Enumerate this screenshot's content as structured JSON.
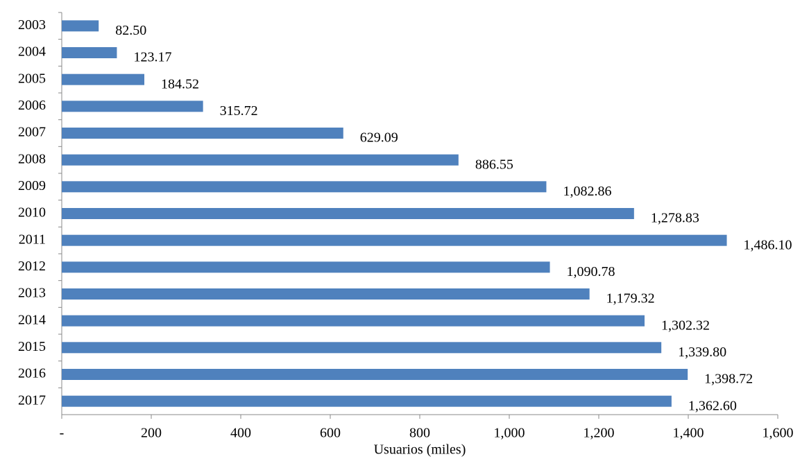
{
  "chart_data": {
    "type": "hbar",
    "x_label": "Usuarios (miles)",
    "categories": [
      "2003",
      "2004",
      "2005",
      "2006",
      "2007",
      "2008",
      "2009",
      "2010",
      "2011",
      "2012",
      "2013",
      "2014",
      "2015",
      "2016",
      "2017"
    ],
    "values": [
      82.5,
      123.17,
      184.52,
      315.72,
      629.09,
      886.55,
      1082.86,
      1278.83,
      1486.1,
      1090.78,
      1179.32,
      1302.32,
      1339.8,
      1398.72,
      1362.6
    ],
    "value_labels": [
      "82.50",
      "123.17",
      "184.52",
      "315.72",
      "629.09",
      "886.55",
      "1,082.86",
      "1,278.83",
      "1,486.10",
      "1,090.78",
      "1,179.32",
      "1,302.32",
      "1,339.80",
      "1,398.72",
      "1,362.60"
    ],
    "color": "#4f81bd",
    "xlim": [
      0,
      1600
    ],
    "xticks": [
      {
        "value": 0,
        "label": "-"
      },
      200,
      400,
      600,
      800,
      {
        "value": 1000,
        "label": "1,000"
      },
      {
        "value": 1200,
        "label": "1,200"
      },
      {
        "value": 1400,
        "label": "1,400"
      },
      {
        "value": 1600,
        "label": "1,600"
      }
    ]
  }
}
